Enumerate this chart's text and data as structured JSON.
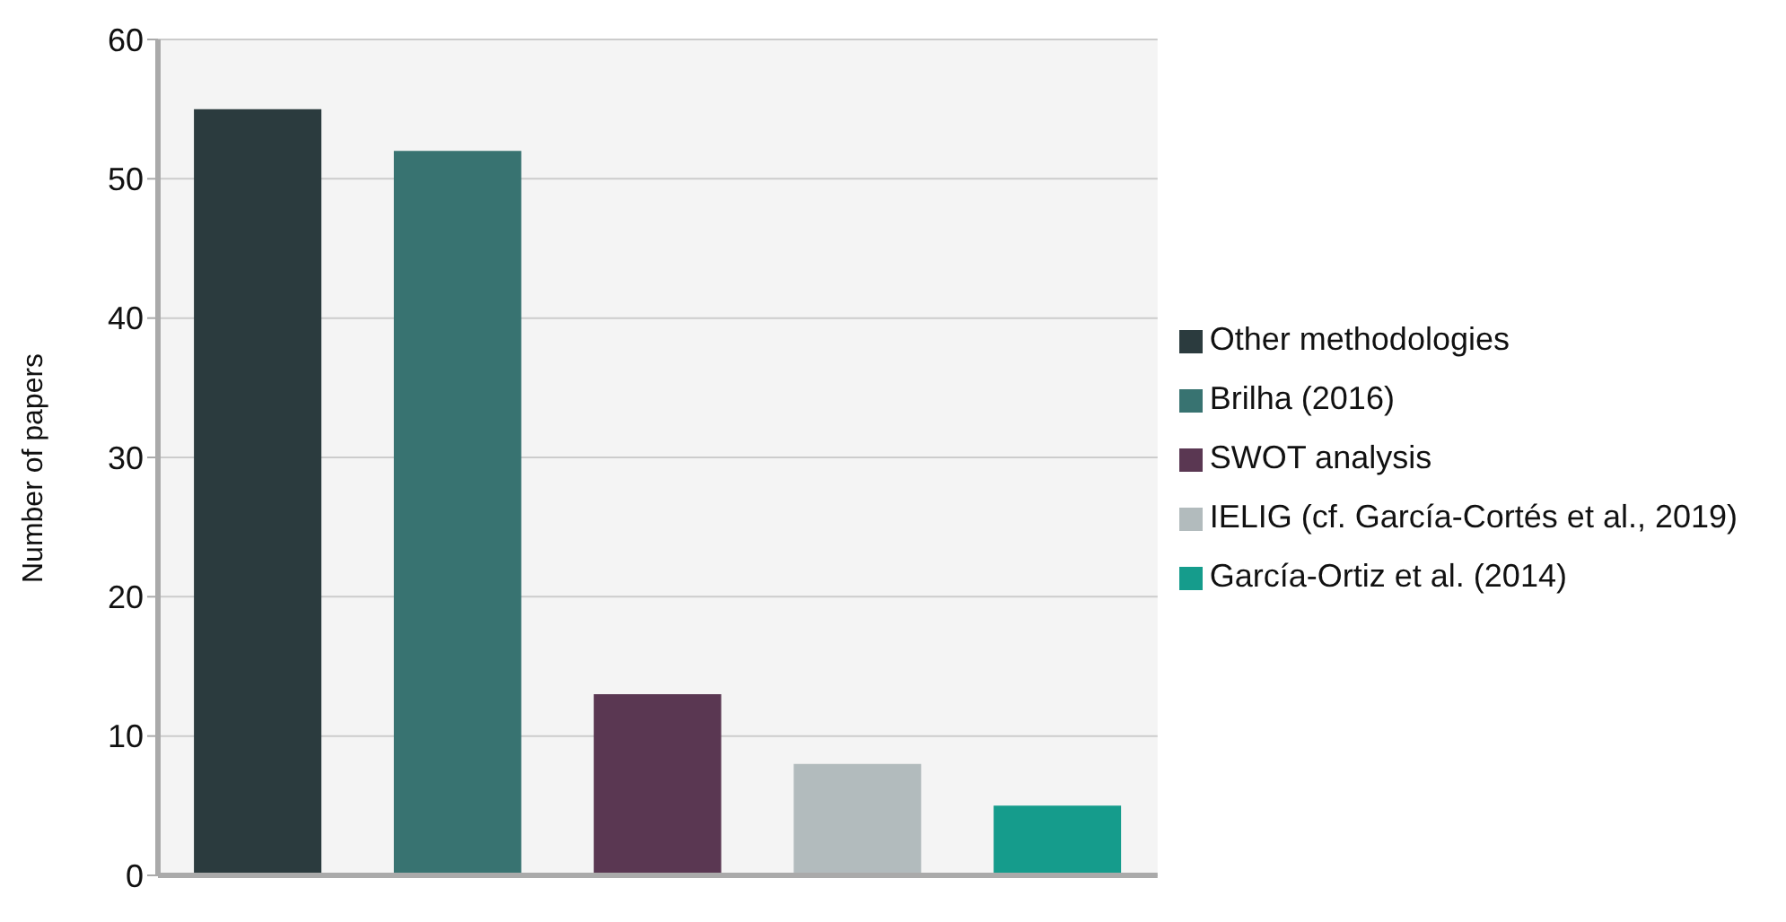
{
  "chart_data": {
    "type": "bar",
    "ylabel": "Number of papers",
    "categories": [
      null,
      null,
      null,
      null,
      null
    ],
    "series": [
      {
        "name": "Other methodologies",
        "color": "#2b3b3e",
        "values": [
          55,
          null,
          null,
          null,
          null
        ]
      },
      {
        "name": "Brilha (2016)",
        "color": "#387371",
        "values": [
          null,
          52,
          null,
          null,
          null
        ]
      },
      {
        "name": "SWOT analysis",
        "color": "#5a3752",
        "values": [
          null,
          null,
          13,
          null,
          null
        ]
      },
      {
        "name": "IELIG (cf. García-Cortés et al., 2019)",
        "color": "#b2bbbd",
        "values": [
          null,
          null,
          null,
          8,
          null
        ]
      },
      {
        "name": "García-Ortiz et al. (2014)",
        "color": "#159c8c",
        "values": [
          null,
          null,
          null,
          null,
          5
        ]
      }
    ],
    "ylim": [
      0,
      60
    ],
    "yticks": [
      0,
      10,
      20,
      30,
      40,
      50,
      60
    ],
    "grid": "y",
    "legend": "right"
  }
}
